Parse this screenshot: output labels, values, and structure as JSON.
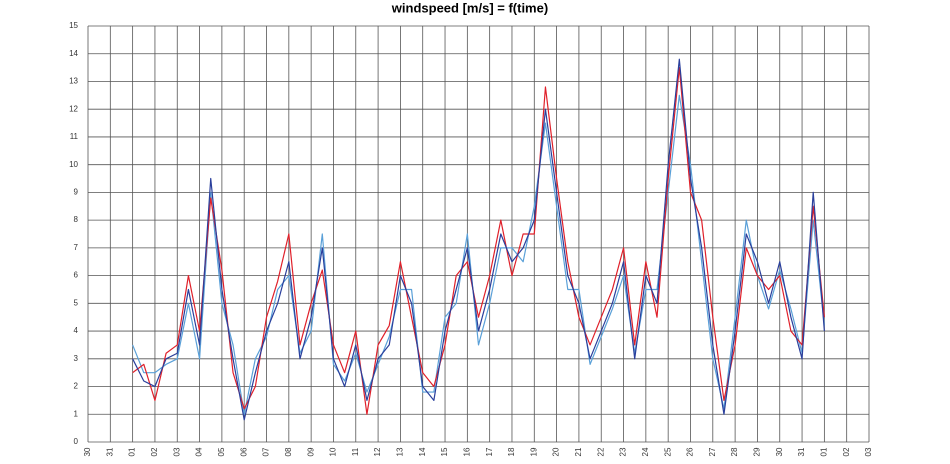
{
  "chart_data": {
    "type": "line",
    "title": "windspeed [m/s] = f(time)",
    "x": [
      2,
      2.5,
      3,
      3.5,
      4,
      4.5,
      5,
      5.5,
      6,
      6.5,
      7,
      7.5,
      8,
      8.5,
      9,
      9.5,
      10,
      10.5,
      11,
      11.5,
      12,
      12.5,
      13,
      13.5,
      14,
      14.5,
      15,
      15.5,
      16,
      16.5,
      17,
      17.5,
      18,
      18.5,
      19,
      19.5,
      20,
      20.5,
      21,
      21.5,
      22,
      22.5,
      23,
      23.5,
      24,
      24.5,
      25,
      25.5,
      26,
      26.5,
      27,
      27.5,
      28,
      28.5,
      29,
      29.5,
      30,
      30.5,
      31,
      31.5,
      32,
      32.5,
      33
    ],
    "series": [
      {
        "color": "#5aa0d8",
        "values": [
          3.5,
          2.5,
          2.5,
          2.8,
          3.0,
          5.0,
          3.0,
          9.0,
          5.0,
          3.5,
          1.0,
          3.0,
          3.8,
          5.5,
          6.0,
          3.2,
          4.0,
          7.5,
          2.8,
          2.2,
          3.2,
          1.8,
          2.8,
          3.8,
          5.5,
          5.5,
          1.8,
          1.8,
          4.5,
          5.0,
          7.5,
          3.5,
          5.0,
          7.0,
          7.0,
          6.5,
          8.5,
          11.5,
          8.5,
          5.5,
          5.5,
          2.8,
          3.8,
          4.8,
          6.0,
          3.2,
          5.5,
          5.5,
          9.0,
          12.5,
          10.0,
          6.5,
          3.0,
          1.2,
          4.5,
          8.0,
          6.0,
          4.8,
          6.2,
          4.8,
          3.2,
          8.0,
          4.2
        ]
      },
      {
        "color": "#e0202a",
        "values": [
          2.5,
          2.8,
          1.5,
          3.2,
          3.5,
          6.0,
          4.0,
          8.8,
          6.2,
          2.5,
          1.2,
          2.0,
          4.5,
          5.8,
          7.5,
          3.5,
          5.0,
          6.2,
          3.5,
          2.5,
          4.0,
          1.0,
          3.5,
          4.2,
          6.5,
          4.5,
          2.5,
          2.0,
          3.5,
          6.0,
          6.5,
          4.5,
          6.0,
          8.0,
          6.0,
          7.5,
          7.5,
          12.8,
          9.5,
          6.5,
          4.5,
          3.5,
          4.5,
          5.5,
          7.0,
          3.5,
          6.5,
          4.5,
          9.5,
          13.5,
          9.0,
          8.0,
          4.5,
          1.5,
          3.5,
          7.0,
          6.0,
          5.5,
          6.0,
          4.0,
          3.5,
          8.5,
          4.5
        ]
      },
      {
        "color": "#2a3f9c",
        "values": [
          3.0,
          2.2,
          2.0,
          3.0,
          3.2,
          5.5,
          3.5,
          9.5,
          5.5,
          3.0,
          0.8,
          2.5,
          4.0,
          5.0,
          6.5,
          3.0,
          4.5,
          7.0,
          3.0,
          2.0,
          3.5,
          1.5,
          3.0,
          3.5,
          6.0,
          5.0,
          2.0,
          1.5,
          4.0,
          5.5,
          7.0,
          4.0,
          5.5,
          7.5,
          6.5,
          7.0,
          8.0,
          12.0,
          9.0,
          6.0,
          5.0,
          3.0,
          4.0,
          5.0,
          6.5,
          3.0,
          6.0,
          5.0,
          10.0,
          13.8,
          9.5,
          7.0,
          3.5,
          1.0,
          4.0,
          7.5,
          6.5,
          5.0,
          6.5,
          4.5,
          3.0,
          9.0,
          4.0
        ]
      }
    ],
    "xlim": [
      0,
      35
    ],
    "xticks": [
      {
        "value": 0,
        "label": "30"
      },
      {
        "value": 1,
        "label": "31"
      },
      {
        "value": 2,
        "label": "01"
      },
      {
        "value": 3,
        "label": "02"
      },
      {
        "value": 4,
        "label": "03"
      },
      {
        "value": 5,
        "label": "04"
      },
      {
        "value": 6,
        "label": "05"
      },
      {
        "value": 7,
        "label": "06"
      },
      {
        "value": 8,
        "label": "07"
      },
      {
        "value": 9,
        "label": "08"
      },
      {
        "value": 10,
        "label": "09"
      },
      {
        "value": 11,
        "label": "10"
      },
      {
        "value": 12,
        "label": "11"
      },
      {
        "value": 13,
        "label": "12"
      },
      {
        "value": 14,
        "label": "13"
      },
      {
        "value": 15,
        "label": "14"
      },
      {
        "value": 16,
        "label": "15"
      },
      {
        "value": 17,
        "label": "16"
      },
      {
        "value": 18,
        "label": "17"
      },
      {
        "value": 19,
        "label": "18"
      },
      {
        "value": 20,
        "label": "19"
      },
      {
        "value": 21,
        "label": "20"
      },
      {
        "value": 22,
        "label": "21"
      },
      {
        "value": 23,
        "label": "22"
      },
      {
        "value": 24,
        "label": "23"
      },
      {
        "value": 25,
        "label": "24"
      },
      {
        "value": 26,
        "label": "25"
      },
      {
        "value": 27,
        "label": "26"
      },
      {
        "value": 28,
        "label": "27"
      },
      {
        "value": 29,
        "label": "28"
      },
      {
        "value": 30,
        "label": "29"
      },
      {
        "value": 31,
        "label": "30"
      },
      {
        "value": 32,
        "label": "31"
      },
      {
        "value": 33,
        "label": "01"
      },
      {
        "value": 34,
        "label": "02"
      },
      {
        "value": 35,
        "label": "03"
      }
    ],
    "ylim": [
      0,
      15
    ],
    "yticks": [
      0,
      1,
      2,
      3,
      4,
      5,
      6,
      7,
      8,
      9,
      10,
      11,
      12,
      13,
      14,
      15
    ],
    "grid": true
  }
}
